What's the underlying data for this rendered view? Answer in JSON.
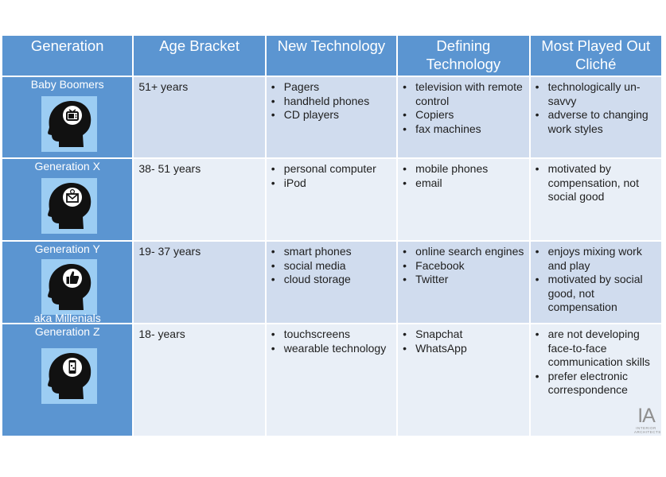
{
  "headers": [
    "Generation",
    "Age Bracket",
    "New Technology",
    "Defining Technology",
    "Most Played Out Cliché"
  ],
  "rows": [
    {
      "generation": "Baby Boomers",
      "icon": "tv-icon",
      "age": "51+ years",
      "new_technology": [
        "Pagers",
        "handheld phones",
        "CD players"
      ],
      "defining_technology": [
        "television with remote control",
        "Copiers",
        "fax machines"
      ],
      "cliche": [
        "technologically un-savvy",
        "adverse to changing work styles"
      ]
    },
    {
      "generation": "Generation X",
      "icon": "email-icon",
      "age": "38- 51 years",
      "new_technology": [
        "personal computer",
        "iPod"
      ],
      "defining_technology": [
        "mobile phones",
        "email"
      ],
      "cliche": [
        "motivated by compensation, not social good"
      ]
    },
    {
      "generation": "Generation Y",
      "aka": "aka Millenials",
      "icon": "thumbs-up-icon",
      "age": "19- 37 years",
      "new_technology": [
        "smart phones",
        "social media",
        "cloud storage"
      ],
      "defining_technology": [
        "online search engines",
        "Facebook",
        "Twitter"
      ],
      "cliche": [
        "enjoys mixing work and play",
        "motivated by social good, not compensation"
      ]
    },
    {
      "generation": "Generation Z",
      "icon": "smartphone-icon",
      "age": "18-  years",
      "new_technology": [
        "touchscreens",
        "wearable technology"
      ],
      "defining_technology": [
        "Snapchat",
        "WhatsApp"
      ],
      "cliche": [
        "are not developing face-to-face communication skills",
        "prefer electronic correspondence"
      ]
    }
  ],
  "logo": {
    "mark": "IA",
    "text": "INTERIOR ARCHITECTS"
  },
  "colors": {
    "header_blue": "#5b95d1",
    "row_dark": "#d0dcee",
    "row_light": "#e9eff7",
    "icon_bg": "#9ccdf3"
  }
}
